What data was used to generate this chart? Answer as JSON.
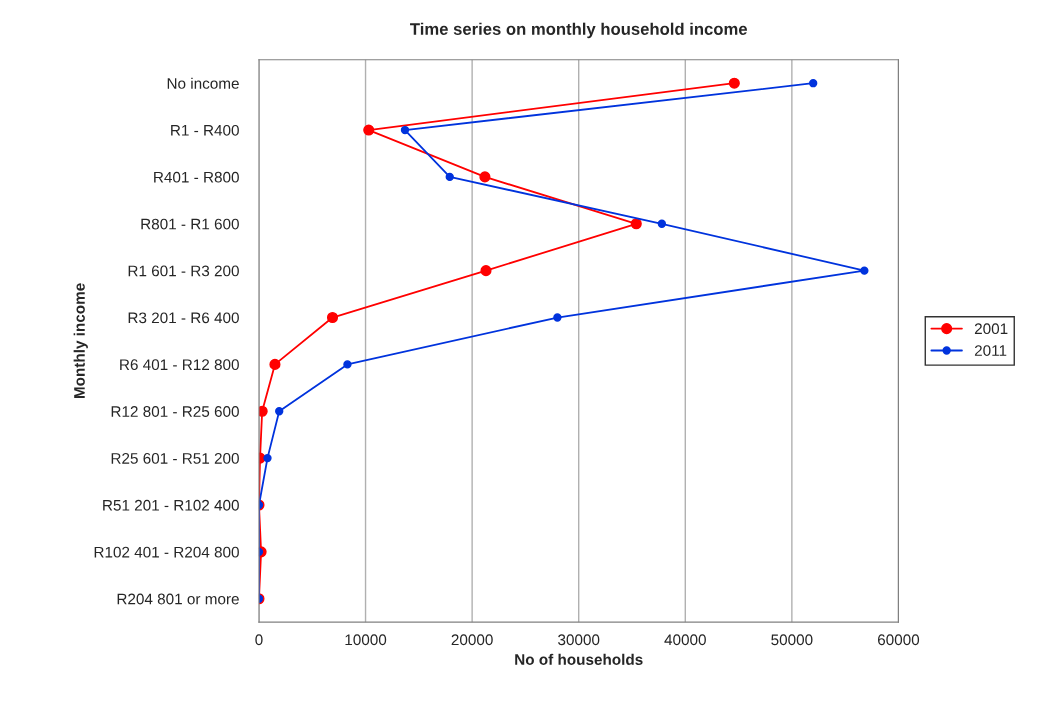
{
  "chart_data": {
    "type": "line",
    "orientation": "horizontal",
    "title": "Time series on monthly household income",
    "xlabel": "No of households",
    "ylabel": "Monthly income",
    "categories": [
      "No income",
      "R1 - R400",
      "R401 - R800",
      "R801 - R1 600",
      "R1 601 - R3 200",
      "R3 201 - R6 400",
      "R6 401 - R12 800",
      "R12 801 - R25 600",
      "R25 601 - R51 200",
      "R51 201 - R102 400",
      "R102 401 - R204 800",
      "R204 801 or more"
    ],
    "series": [
      {
        "name": "2001",
        "color": "#ff0000",
        "values": [
          44600,
          10300,
          21200,
          35400,
          21300,
          6900,
          1500,
          300,
          100,
          0,
          200,
          0
        ]
      },
      {
        "name": "2011",
        "color": "#0033dd",
        "values": [
          52000,
          13700,
          17900,
          37800,
          56800,
          28000,
          8300,
          1900,
          800,
          0,
          0,
          0
        ]
      }
    ],
    "xlim": [
      0,
      60000
    ],
    "xticks": [
      0,
      10000,
      20000,
      30000,
      40000,
      50000,
      60000
    ],
    "grid": "x",
    "legend": "right",
    "marker": "circle",
    "line_style": "solid"
  }
}
